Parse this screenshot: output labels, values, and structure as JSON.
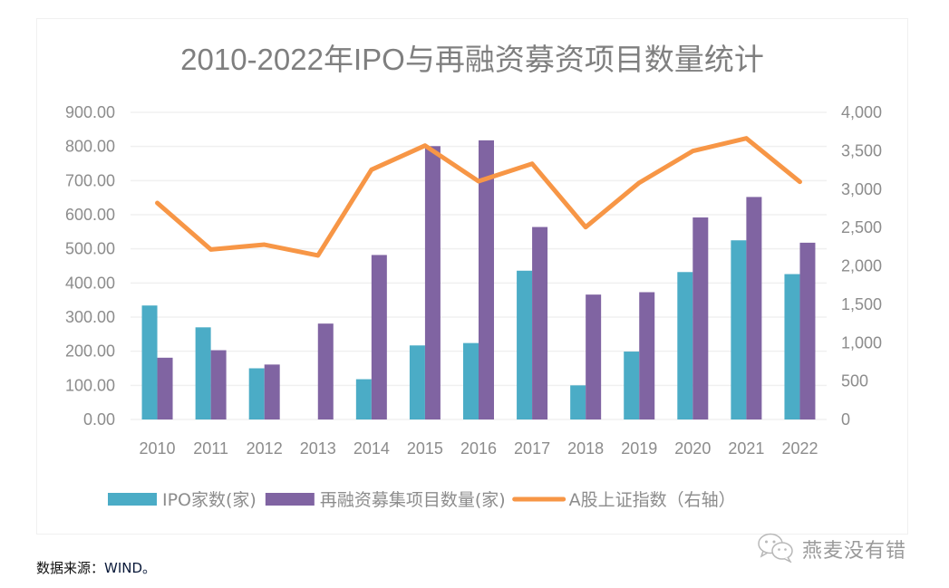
{
  "chart_data": {
    "type": "bar",
    "title": "2010-2022年IPO与再融资募资项目数量统计",
    "categories": [
      "2010",
      "2011",
      "2012",
      "2013",
      "2014",
      "2015",
      "2016",
      "2017",
      "2018",
      "2019",
      "2020",
      "2021",
      "2022"
    ],
    "series": [
      {
        "name": "IPO家数(家)",
        "type": "bar",
        "axis": "left",
        "color": "#4BACC6",
        "values": [
          334,
          270,
          150,
          0,
          118,
          217,
          224,
          436,
          100,
          199,
          432,
          525,
          426
        ]
      },
      {
        "name": "再融资募集项目数量(家)",
        "type": "bar",
        "axis": "left",
        "color": "#8064A2",
        "values": [
          181,
          203,
          161,
          281,
          482,
          801,
          818,
          564,
          366,
          373,
          592,
          652,
          518
        ]
      },
      {
        "name": "A股上证指数（右轴）",
        "type": "line",
        "axis": "right",
        "color": "#F79646",
        "values": [
          2820,
          2214,
          2277,
          2136,
          3253,
          3567,
          3103,
          3331,
          2505,
          3083,
          3496,
          3662,
          3095
        ]
      }
    ],
    "left_axis": {
      "ylim": [
        0,
        900
      ],
      "step": 100,
      "tick_labels": [
        "0.00",
        "100.00",
        "200.00",
        "300.00",
        "400.00",
        "500.00",
        "600.00",
        "700.00",
        "800.00",
        "900.00"
      ]
    },
    "right_axis": {
      "ylim": [
        0,
        4000
      ],
      "step": 500,
      "tick_labels": [
        "0",
        "500",
        "1,000",
        "1,500",
        "2,000",
        "2,500",
        "3,000",
        "3,500",
        "4,000"
      ]
    },
    "xlabel": "",
    "ylabel": "",
    "grid": true,
    "legend": "bottom"
  },
  "footer": {
    "source_label": "数据来源：",
    "source_value": "WIND。"
  },
  "watermark": {
    "icon": "wechat-icon",
    "text": "燕麦没有错"
  }
}
